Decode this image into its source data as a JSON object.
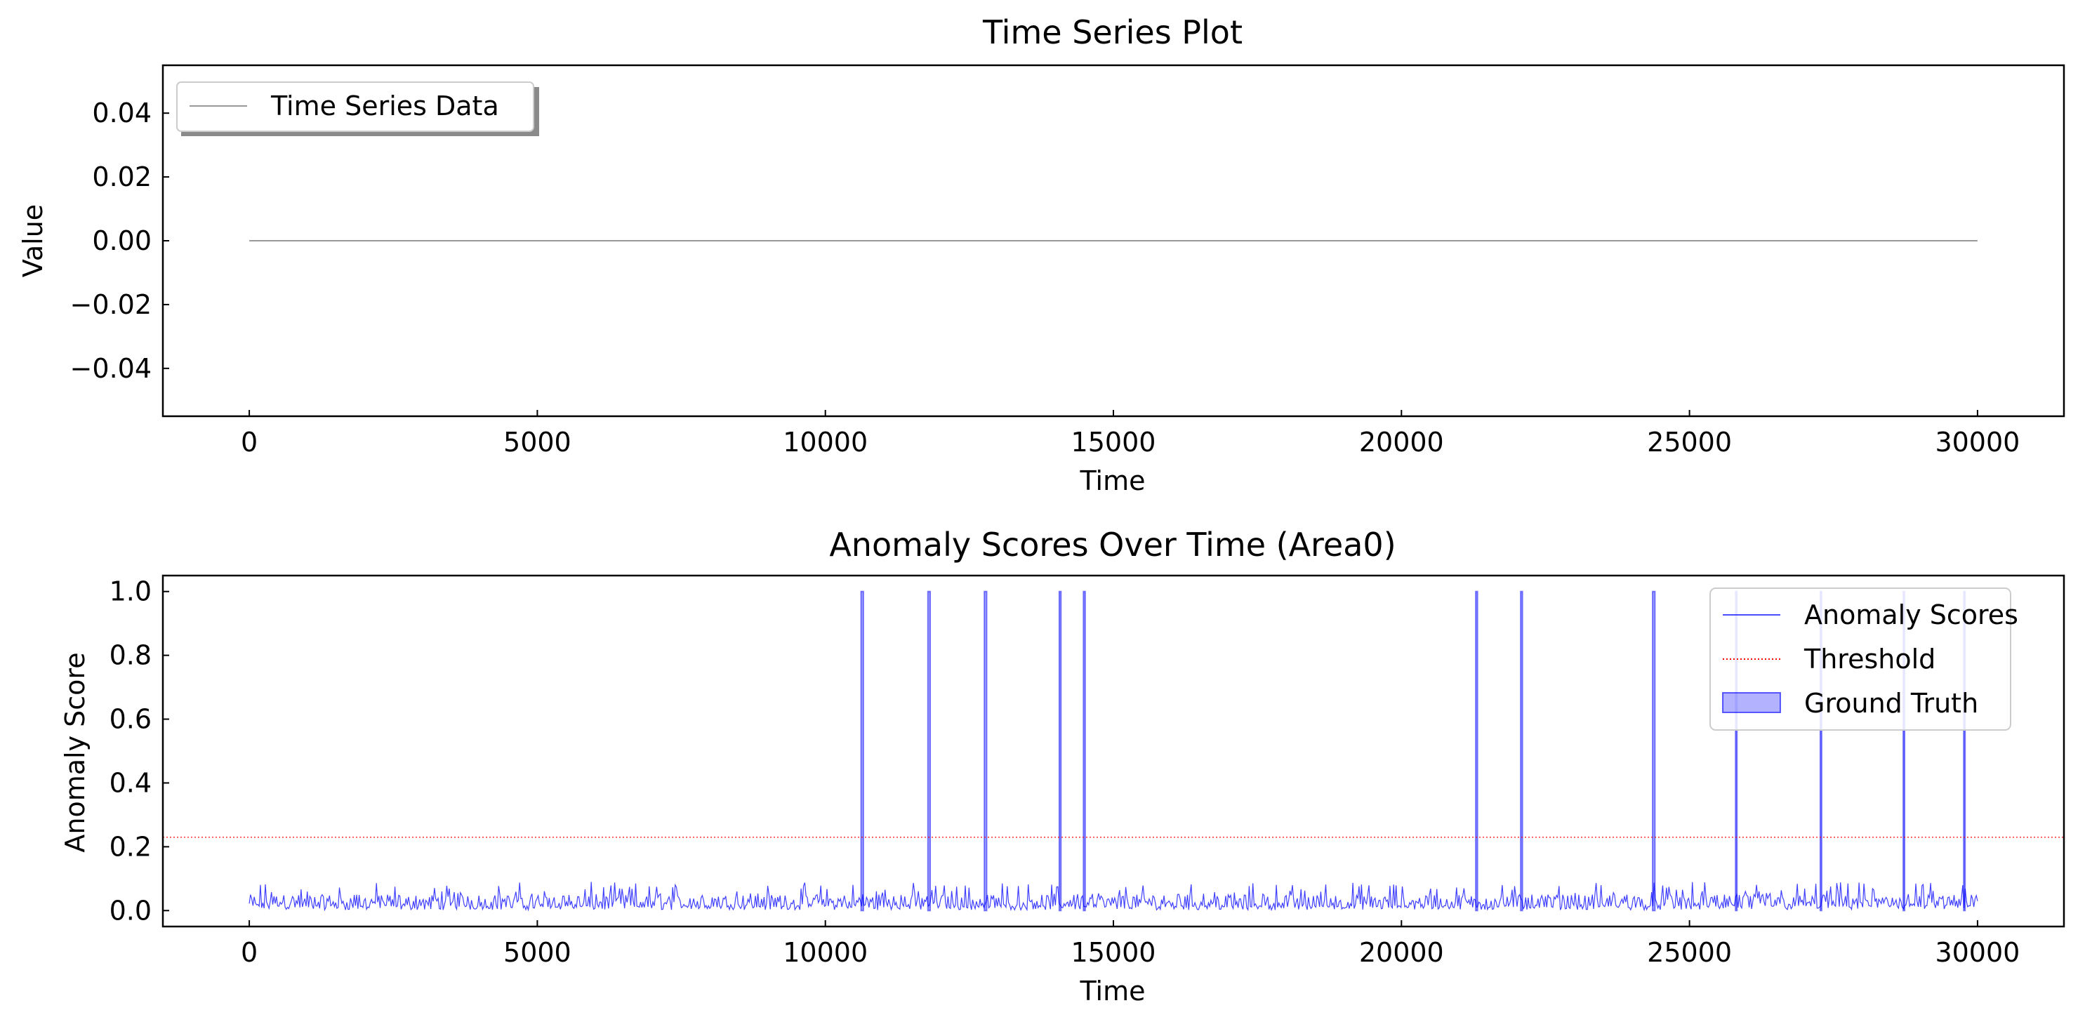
{
  "chart_data": [
    {
      "type": "line",
      "title": "Time Series Plot",
      "xlabel": "Time",
      "ylabel": "Value",
      "xlim": [
        -1500,
        31500
      ],
      "ylim": [
        -0.055,
        0.055
      ],
      "xticks": [
        0,
        5000,
        10000,
        15000,
        20000,
        25000,
        30000
      ],
      "yticks": [
        0.04,
        0.02,
        0.0,
        -0.02,
        -0.04
      ],
      "ytick_labels": [
        "0.04",
        "0.02",
        "0.00",
        "−0.02",
        "−0.04"
      ],
      "legend": {
        "position": "top-left",
        "shadow": true
      },
      "series": [
        {
          "name": "Time Series Data",
          "color": "#999999",
          "x": [
            0,
            30000
          ],
          "y": [
            0.0,
            0.0
          ]
        }
      ]
    },
    {
      "type": "line",
      "title": "Anomaly Scores Over Time (Area0)",
      "xlabel": "Time",
      "ylabel": "Anomaly Score",
      "xlim": [
        -1500,
        31500
      ],
      "ylim": [
        -0.05,
        1.05
      ],
      "xticks": [
        0,
        5000,
        10000,
        15000,
        20000,
        25000,
        30000
      ],
      "yticks": [
        1.0,
        0.8,
        0.6,
        0.4,
        0.2,
        0.0
      ],
      "ytick_labels": [
        "1.0",
        "0.8",
        "0.6",
        "0.4",
        "0.2",
        "0.0"
      ],
      "legend": {
        "position": "top-right"
      },
      "series": [
        {
          "name": "Anomaly Scores",
          "color": "#0000ff",
          "x_start": 0,
          "x_end": 30000,
          "typical_range": [
            0.0,
            0.1
          ]
        },
        {
          "name": "Threshold",
          "color": "#ff0000",
          "style": "dotted",
          "value": 0.23
        }
      ],
      "ground_truth": {
        "name": "Ground Truth",
        "color": "#0000ff",
        "intervals": [
          [
            10620,
            10660
          ],
          [
            11780,
            11820
          ],
          [
            12760,
            12800
          ],
          [
            14060,
            14090
          ],
          [
            14480,
            14510
          ],
          [
            21290,
            21320
          ],
          [
            22070,
            22100
          ],
          [
            24360,
            24400
          ],
          [
            25800,
            25820
          ],
          [
            27270,
            27290
          ],
          [
            28710,
            28730
          ],
          [
            29760,
            29780
          ]
        ]
      }
    }
  ]
}
